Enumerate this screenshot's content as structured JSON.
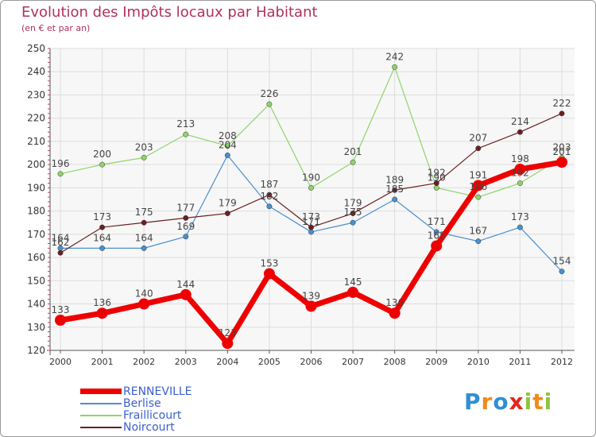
{
  "title": "Evolution des Impôts locaux par Habitant",
  "subtitle": "(en € et par an)",
  "brand": {
    "text": "Proxiti",
    "letters": [
      "P",
      "r",
      "o",
      "x",
      "i",
      "t",
      "i"
    ],
    "colors": [
      "#2f8fd0",
      "#f08a1c",
      "#2f8fd0",
      "#e4261f",
      "#8cc63f",
      "#f08a1c",
      "#8cc63f"
    ]
  },
  "chart_data": {
    "type": "line",
    "x": [
      2000,
      2001,
      2002,
      2003,
      2004,
      2005,
      2006,
      2007,
      2008,
      2009,
      2010,
      2011,
      2012
    ],
    "ylim": [
      120,
      250
    ],
    "yticks": [
      120,
      130,
      140,
      150,
      160,
      170,
      180,
      190,
      200,
      210,
      220,
      230,
      240,
      250
    ],
    "grid": true,
    "legend_position": "bottom-left",
    "series": [
      {
        "name": "RENNEVILLE",
        "color": "#ee0000",
        "width": 7,
        "marker": 7,
        "values": [
          133,
          136,
          140,
          144,
          123,
          153,
          139,
          145,
          136,
          165,
          191,
          198,
          201
        ],
        "labels": [
          "133",
          "136",
          "140",
          "144",
          "123",
          "153",
          "139",
          "145",
          "136",
          "165",
          "191",
          "198",
          "201"
        ]
      },
      {
        "name": "Berlise",
        "color": "#4a8fd0",
        "width": 1.2,
        "marker": 3.2,
        "values": [
          164,
          164,
          164,
          169,
          204,
          182,
          171,
          175,
          185,
          171,
          167,
          173,
          154
        ],
        "labels": [
          "164",
          "164",
          "164",
          "169",
          "204",
          "182",
          "171",
          "175",
          "185",
          "171",
          "167",
          "173",
          "154"
        ]
      },
      {
        "name": "Fraillicourt",
        "color": "#8fd46a",
        "width": 1.2,
        "marker": 3.2,
        "values": [
          196,
          200,
          203,
          213,
          208,
          226,
          190,
          201,
          242,
          190,
          186,
          192,
          203
        ],
        "labels": [
          "196",
          "200",
          "203",
          "213",
          "208",
          "226",
          "190",
          "201",
          "242",
          "190",
          "186",
          "192",
          "203"
        ]
      },
      {
        "name": "Noircourt",
        "color": "#6b1f22",
        "width": 1.2,
        "marker": 3.2,
        "values": [
          162,
          173,
          175,
          177,
          179,
          187,
          173,
          179,
          189,
          192,
          207,
          214,
          222
        ],
        "labels": [
          "162",
          "173",
          "175",
          "177",
          "179",
          "187",
          "173",
          "179",
          "189",
          "192",
          "207",
          "214",
          "222"
        ]
      }
    ]
  }
}
